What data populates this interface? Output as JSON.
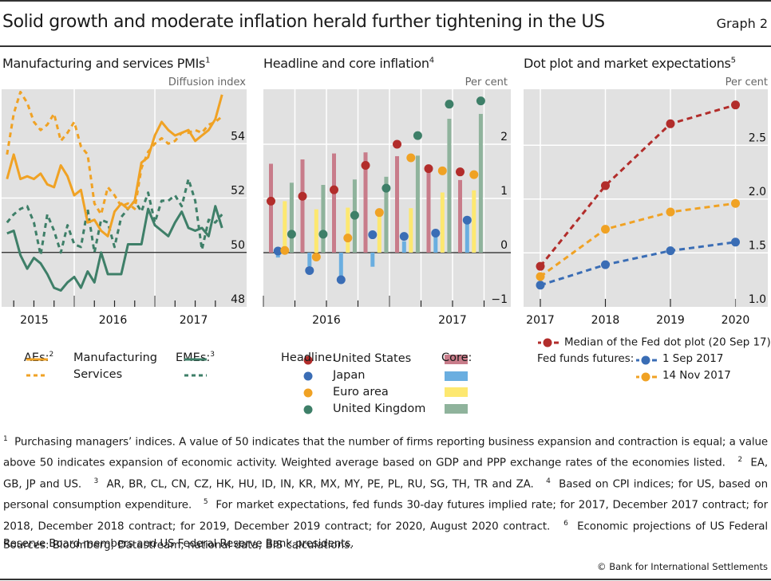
{
  "header": {
    "title": "Solid growth and moderate inflation herald further tightening in the US",
    "graph_label": "Graph 2"
  },
  "panels": {
    "pmi": {
      "title": "Manufacturing and services PMIs",
      "sup": "1",
      "unit": "Diffusion index"
    },
    "inflation": {
      "title": "Headline and core inflation",
      "sup": "4",
      "unit": "Per cent"
    },
    "dotplot": {
      "title": "Dot plot and market expectations",
      "sup": "5",
      "unit": "Per cent"
    }
  },
  "legends": {
    "pmi": {
      "aes_label": "AEs:",
      "aes_sup": "2",
      "emes_label": "EMEs:",
      "emes_sup": "3",
      "manufacturing": "Manufacturing",
      "services": "Services"
    },
    "inflation": {
      "headline_label": "Headline:",
      "core_label": "Core:",
      "items": [
        "United States",
        "Japan",
        "Euro area",
        "United Kingdom"
      ]
    },
    "dotplot": {
      "median_label": "Median of the Fed dot plot (20 Sep 17)",
      "median_sup": "6",
      "futures_label": "Fed funds futures:",
      "sep_label": "1 Sep 2017",
      "nov_label": "14 Nov 2017"
    }
  },
  "colors": {
    "plot_bg": "#e1e1e1",
    "grid": "#ffffff",
    "ae": "#f0a224",
    "eme": "#3e7f68",
    "us_headline": "#b22d2b",
    "japan_headline": "#3a6db5",
    "euro_headline": "#f0a224",
    "uk_headline": "#3e7f68",
    "us_core": "#c87c8a",
    "japan_core": "#6aaee0",
    "euro_core": "#fde870",
    "uk_core": "#8fb39c"
  },
  "chart_data": [
    {
      "id": "pmi",
      "type": "line",
      "title": "Manufacturing and services PMIs",
      "ylabel": "Diffusion index",
      "ylim": [
        48,
        56
      ],
      "yticks": [
        48,
        50,
        52,
        54
      ],
      "reference_line": 50,
      "x_start": "Mar 2015",
      "x_frequency": "monthly",
      "xtick_labels": [
        "2015",
        "2016",
        "2017"
      ],
      "series": [
        {
          "name": "AEs Manufacturing",
          "style": "solid",
          "color_key": "ae",
          "values": [
            52.7,
            53.6,
            52.7,
            52.8,
            52.7,
            52.9,
            52.5,
            52.4,
            53.2,
            52.8,
            52.1,
            52.3,
            51.1,
            51.2,
            50.8,
            50.6,
            51.5,
            51.8,
            51.6,
            51.9,
            53.3,
            53.5,
            54.3,
            54.8,
            54.5,
            54.3,
            54.4,
            54.5,
            54.1,
            54.3,
            54.5,
            54.9,
            55.8
          ]
        },
        {
          "name": "AEs Services",
          "style": "dashed",
          "color_key": "ae",
          "values": [
            53.6,
            55.1,
            55.9,
            55.5,
            54.8,
            54.5,
            54.7,
            55.1,
            54.1,
            54.4,
            54.8,
            53.9,
            53.6,
            51.8,
            51.4,
            52.4,
            52.1,
            51.7,
            51.8,
            51.6,
            53.1,
            53.7,
            54.0,
            54.2,
            54.0,
            54.1,
            54.4,
            54.4,
            54.5,
            54.4,
            54.7,
            54.8,
            55.0
          ]
        },
        {
          "name": "EMEs Manufacturing",
          "style": "solid",
          "color_key": "eme",
          "values": [
            50.7,
            50.8,
            49.9,
            49.4,
            49.8,
            49.6,
            49.2,
            48.7,
            48.6,
            48.9,
            49.1,
            48.7,
            49.3,
            48.9,
            50.0,
            49.2,
            49.2,
            49.2,
            50.3,
            50.3,
            50.3,
            51.6,
            51.0,
            50.8,
            50.6,
            51.1,
            51.5,
            50.9,
            50.8,
            50.9,
            50.6,
            51.7,
            50.9
          ]
        },
        {
          "name": "EMEs Services",
          "style": "dashed",
          "color_key": "eme",
          "values": [
            51.1,
            51.4,
            51.6,
            51.7,
            51.1,
            49.9,
            51.4,
            50.8,
            50.0,
            51.0,
            50.3,
            50.2,
            51.6,
            50.0,
            51.2,
            51.1,
            50.2,
            51.3,
            51.6,
            51.9,
            51.5,
            52.2,
            51.1,
            51.9,
            51.9,
            52.1,
            51.7,
            52.7,
            51.9,
            50.1,
            51.2,
            51.1,
            51.4
          ]
        }
      ]
    },
    {
      "id": "inflation",
      "type": "bar",
      "title": "Headline and core inflation",
      "ylabel": "Per cent",
      "ylim": [
        -1,
        2.9
      ],
      "yticks": [
        -1,
        0,
        1,
        2
      ],
      "categories": [
        "Q1 2016",
        "Q2 2016",
        "Q3 2016",
        "Q4 2016",
        "Q1 2017",
        "Q2 2017",
        "Q3 2017"
      ],
      "xtick_labels": [
        "2016",
        "2017"
      ],
      "series": [
        {
          "name": "United States",
          "core": [
            1.64,
            1.72,
            1.83,
            1.85,
            1.78,
            1.49,
            1.34
          ],
          "headline": [
            0.95,
            1.04,
            1.16,
            1.61,
            2.0,
            1.55,
            1.49
          ]
        },
        {
          "name": "Japan",
          "core": [
            -0.09,
            -0.25,
            -0.45,
            -0.26,
            0.21,
            0.3,
            0.6
          ],
          "headline": [
            0.03,
            -0.33,
            -0.5,
            0.33,
            0.3,
            0.36,
            0.6
          ]
        },
        {
          "name": "Euro area",
          "core": [
            0.95,
            0.8,
            0.83,
            0.74,
            0.82,
            1.11,
            1.15
          ],
          "headline": [
            0.04,
            -0.08,
            0.27,
            0.74,
            1.75,
            1.51,
            1.44
          ]
        },
        {
          "name": "United Kingdom",
          "core": [
            1.29,
            1.25,
            1.35,
            1.4,
            1.79,
            2.47,
            2.56
          ],
          "headline": [
            0.34,
            0.34,
            0.69,
            1.19,
            2.16,
            2.74,
            2.8
          ]
        }
      ]
    },
    {
      "id": "dotplot",
      "type": "line",
      "title": "Dot plot and market expectations",
      "ylabel": "Per cent",
      "ylim": [
        1.0,
        2.95
      ],
      "yticks": [
        1.0,
        1.5,
        2.0,
        2.5
      ],
      "categories": [
        "2017",
        "2018",
        "2019",
        "2020"
      ],
      "series": [
        {
          "name": "Median of the Fed dot plot (20 Sep 17)",
          "color_key": "us_headline",
          "values": [
            1.375,
            2.125,
            2.7,
            2.875
          ]
        },
        {
          "name": "Fed funds futures: 1 Sep 2017",
          "color_key": "japan_headline",
          "values": [
            1.2,
            1.39,
            1.52,
            1.6
          ]
        },
        {
          "name": "Fed funds futures: 14 Nov 2017",
          "color_key": "euro_headline",
          "values": [
            1.28,
            1.72,
            1.88,
            1.96
          ]
        }
      ]
    }
  ],
  "footnotes": {
    "n1_mark": "1",
    "n1": "Purchasing managers’ indices. A value of 50 indicates that the number of firms reporting business expansion and contraction is equal; a value above 50 indicates expansion of economic activity. Weighted average based on GDP and PPP exchange rates of the economies listed.",
    "n2_mark": "2",
    "n2": "EA, GB, JP and US.",
    "n3_mark": "3",
    "n3": "AR, BR, CL, CN, CZ, HK, HU, ID, IN, KR, MX, MY, PE, PL, RU, SG, TH, TR and ZA.",
    "n4_mark": "4",
    "n4": "Based on CPI indices; for US, based on personal consumption expenditure.",
    "n5_mark": "5",
    "n5": "For market expectations, fed funds 30-day futures implied rate; for 2017, December 2017 contract; for 2018, December 2018 contract; for 2019, December 2019 contract; for 2020, August 2020 contract.",
    "n6_mark": "6",
    "n6": "Economic projections of US Federal Reserve Board members and US Federal Reserve Bank presidents."
  },
  "sources": "Sources: Bloomberg; Datastream; national data; BIS calculations.",
  "copyright": "© Bank for International Settlements"
}
